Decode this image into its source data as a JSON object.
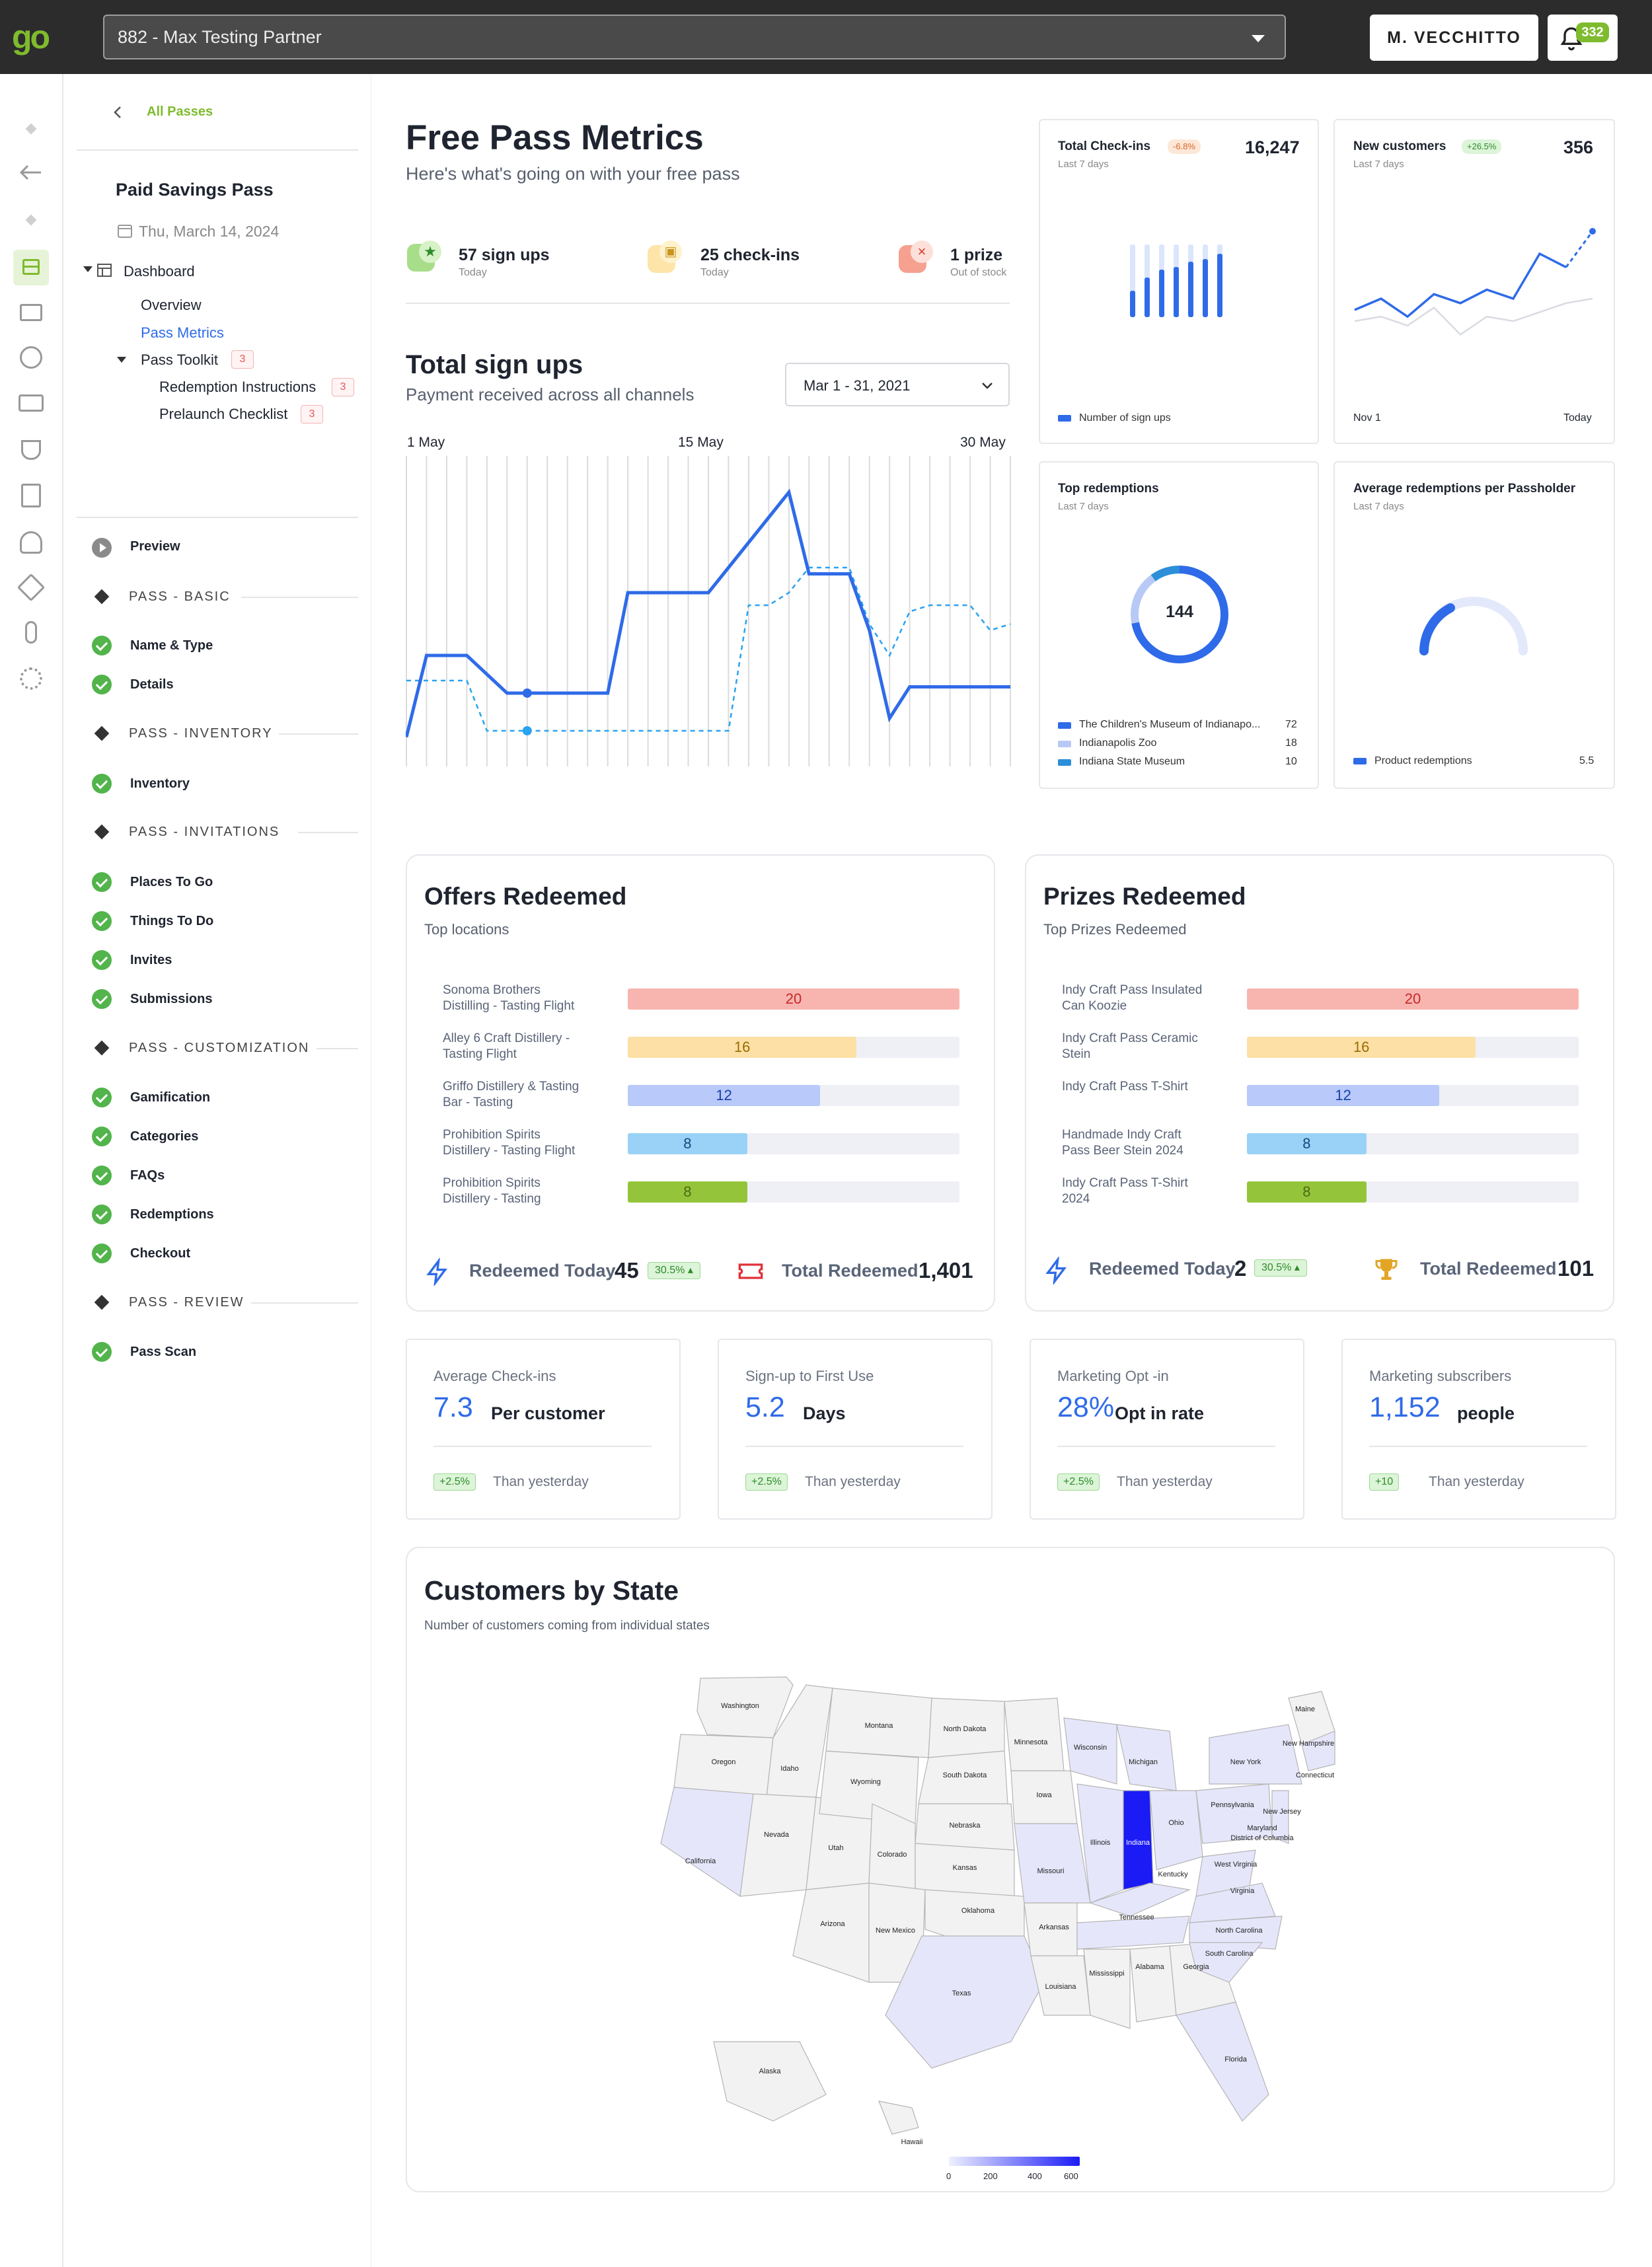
{
  "header": {
    "logo": "go",
    "partner": "882 - Max Testing Partner",
    "user": "M. VECCHITTO",
    "notifications": "332"
  },
  "sidebar": {
    "back": "All Passes",
    "pass_name": "Paid Savings Pass",
    "date": "Thu, March 14, 2024",
    "dashboard": "Dashboard",
    "overview": "Overview",
    "pass_metrics": "Pass Metrics",
    "pass_toolkit": "Pass Toolkit",
    "toolkit_count": "3",
    "redemption_instructions": "Redemption Instructions",
    "redemption_count": "3",
    "prelaunch_checklist": "Prelaunch Checklist",
    "prelaunch_count": "3",
    "preview": "Preview",
    "sections": [
      {
        "title": "PASS - BASIC",
        "items": [
          "Name & Type",
          "Details"
        ]
      },
      {
        "title": "PASS - INVENTORY",
        "items": [
          "Inventory"
        ]
      },
      {
        "title": "PASS - INVITATIONS",
        "items": [
          "Places To Go",
          "Things To Do",
          "Invites",
          "Submissions"
        ]
      },
      {
        "title": "PASS - CUSTOMIZATION",
        "items": [
          "Gamification",
          "Categories",
          "FAQs",
          "Redemptions",
          "Checkout"
        ]
      },
      {
        "title": "PASS - REVIEW",
        "items": [
          "Pass Scan"
        ]
      }
    ]
  },
  "metrics": {
    "title": "Free Pass Metrics",
    "subtitle": "Here's what's going on with your free pass",
    "stats": [
      {
        "value": "57 sign ups",
        "label": "Today"
      },
      {
        "value": "25 check-ins",
        "label": "Today"
      },
      {
        "value": "1 prize",
        "label": "Out of stock"
      }
    ],
    "signups": {
      "title": "Total sign ups",
      "subtitle": "Payment received across all channels",
      "range": "Mar 1 - 31, 2021",
      "ticks": [
        "1 May",
        "15 May",
        "30 May"
      ]
    }
  },
  "chart_data": [
    {
      "type": "line",
      "title": "Total sign ups",
      "x": [
        1,
        2,
        3,
        4,
        5,
        6,
        7,
        8,
        9,
        10,
        11,
        12,
        13,
        14,
        15,
        16,
        17,
        18,
        19,
        20,
        21,
        22,
        23,
        24,
        25,
        26,
        27,
        28,
        29,
        30,
        31
      ],
      "series": [
        {
          "name": "solid",
          "values": [
            5,
            70,
            70,
            70,
            55,
            40,
            40,
            40,
            40,
            40,
            40,
            120,
            120,
            120,
            120,
            120,
            140,
            160,
            180,
            200,
            135,
            135,
            135,
            90,
            20,
            45,
            45,
            45,
            45,
            45,
            45
          ]
        },
        {
          "name": "dashed",
          "values": [
            50,
            50,
            50,
            50,
            10,
            10,
            10,
            10,
            10,
            10,
            10,
            10,
            10,
            10,
            10,
            10,
            10,
            110,
            110,
            120,
            140,
            140,
            140,
            95,
            70,
            105,
            110,
            110,
            110,
            90,
            95
          ]
        }
      ],
      "xlabel": "",
      "ylabel": ""
    },
    {
      "type": "bar",
      "title": "Total Check-ins",
      "values": [
        20,
        30,
        36,
        38,
        42,
        44,
        48
      ],
      "legend": "Number of sign ups"
    },
    {
      "type": "line",
      "title": "New customers",
      "series": [
        {
          "name": "primary",
          "values": [
            15,
            20,
            12,
            22,
            18,
            24,
            20,
            40,
            34,
            50
          ]
        },
        {
          "name": "secondary",
          "values": [
            10,
            12,
            8,
            16,
            4,
            12,
            10,
            14,
            18,
            20
          ]
        }
      ]
    },
    {
      "type": "pie",
      "title": "Top redemptions",
      "categories": [
        "The Children's Museum of Indianapo...",
        "Indianapolis Zoo",
        "Indiana  State Museum"
      ],
      "values": [
        72,
        18,
        10
      ],
      "center": "144"
    },
    {
      "type": "gauge",
      "title": "Average redemptions per Passholder",
      "values": [
        5.5
      ],
      "legend": "Product redemptions"
    }
  ],
  "cards": {
    "checkins": {
      "title": "Total Check-ins",
      "delta": "-6.8%",
      "value": "16,247",
      "period": "Last 7 days",
      "legend": "Number of sign ups",
      "legend_value": ""
    },
    "newcust": {
      "title": "New customers",
      "delta": "+26.5%",
      "value": "356",
      "period": "Last 7 days",
      "from": "Nov 1",
      "to": "Today"
    },
    "topred": {
      "title": "Top redemptions",
      "period": "Last 7 days",
      "center": "144",
      "items": [
        {
          "name": "The Children's Museum of Indianapo...",
          "value": "72"
        },
        {
          "name": "Indianapolis Zoo",
          "value": "18"
        },
        {
          "name": "Indiana  State Museum",
          "value": "10"
        }
      ]
    },
    "avgred": {
      "title": "Average redemptions per Passholder",
      "period": "Last 7 days",
      "legend": "Product redemptions",
      "value": "5.5"
    }
  },
  "offers": {
    "title": "Offers Redeemed",
    "subtitle": "Top locations",
    "rows": [
      {
        "l1": "Sonoma Brothers",
        "l2": "Distilling - Tasting Flight",
        "value": "20",
        "frac": 1.0
      },
      {
        "l1": "Alley 6 Craft Distillery -",
        "l2": "Tasting Flight",
        "value": "16",
        "frac": 0.69
      },
      {
        "l1": "Griffo Distillery & Tasting",
        "l2": "Bar - Tasting",
        "value": "12",
        "frac": 0.58
      },
      {
        "l1": "Prohibition Spirits",
        "l2": "Distillery -  Tasting Flight",
        "value": "8",
        "frac": 0.36
      },
      {
        "l1": "Prohibition Spirits",
        "l2": "Distillery -  Tasting",
        "value": "8",
        "frac": 0.36
      }
    ],
    "today_label": "Redeemed Today",
    "today_value": "45",
    "today_delta": "30.5% ▴",
    "total_label": "Total Redeemed",
    "total_value": "1,401"
  },
  "prizes": {
    "title": "Prizes Redeemed",
    "subtitle": "Top Prizes Redeemed",
    "rows": [
      {
        "l1": "Indy Craft Pass Insulated",
        "l2": "Can Koozie",
        "value": "20",
        "frac": 1.0
      },
      {
        "l1": "Indy Craft Pass Ceramic",
        "l2": "Stein",
        "value": "16",
        "frac": 0.69
      },
      {
        "l1": "Indy Craft Pass T-Shirt",
        "l2": "",
        "value": "12",
        "frac": 0.58
      },
      {
        "l1": "Handmade Indy Craft",
        "l2": "Pass Beer Stein 2024",
        "value": "8",
        "frac": 0.36
      },
      {
        "l1": "Indy Craft Pass T-Shirt",
        "l2": "2024",
        "value": "8",
        "frac": 0.36
      }
    ],
    "today_label": "Redeemed Today",
    "today_value": "2",
    "today_delta": "30.5% ▴",
    "total_label": "Total Redeemed",
    "total_value": "101"
  },
  "smallstats": [
    {
      "title": "Average Check-ins",
      "value": "7.3",
      "unit": "Per customer",
      "delta": "+2.5%",
      "note": "Than yesterday"
    },
    {
      "title": "Sign-up to First Use",
      "value": "5.2",
      "unit": "Days",
      "delta": "+2.5%",
      "note": "Than yesterday"
    },
    {
      "title": "Marketing Opt -in",
      "value": "28%",
      "unit": "Opt in rate",
      "delta": "+2.5%",
      "note": "Than yesterday"
    },
    {
      "title": "Marketing subscribers",
      "value": "1,152",
      "unit": "people",
      "delta": "+10",
      "note": "Than yesterday"
    }
  ],
  "map": {
    "title": "Customers by State",
    "subtitle": "Number of customers coming from individual states",
    "labels": [
      "Washington",
      "Montana",
      "North Dakota",
      "Minnesota",
      "Oregon",
      "Idaho",
      "Wyoming",
      "South Dakota",
      "Wisconsin",
      "Michigan",
      "Maine",
      "New Hampshire",
      "New York",
      "Connecticut",
      "Nevada",
      "Utah",
      "Nebraska",
      "Iowa",
      "Illinois",
      "Indiana",
      "Ohio",
      "Pennsylvania",
      "New Jersey",
      "Maryland",
      "District of Columbia",
      "California",
      "Colorado",
      "Kansas",
      "Missouri",
      "Kentucky",
      "West Virginia",
      "Virginia",
      "Arizona",
      "New Mexico",
      "Oklahoma",
      "Arkansas",
      "Tennessee",
      "North Carolina",
      "South Carolina",
      "Mississippi",
      "Alabama",
      "Georgia",
      "Texas",
      "Louisiana",
      "Florida",
      "Alaska",
      "Hawaii"
    ],
    "scale": [
      "0",
      "200",
      "400",
      "600"
    ]
  }
}
